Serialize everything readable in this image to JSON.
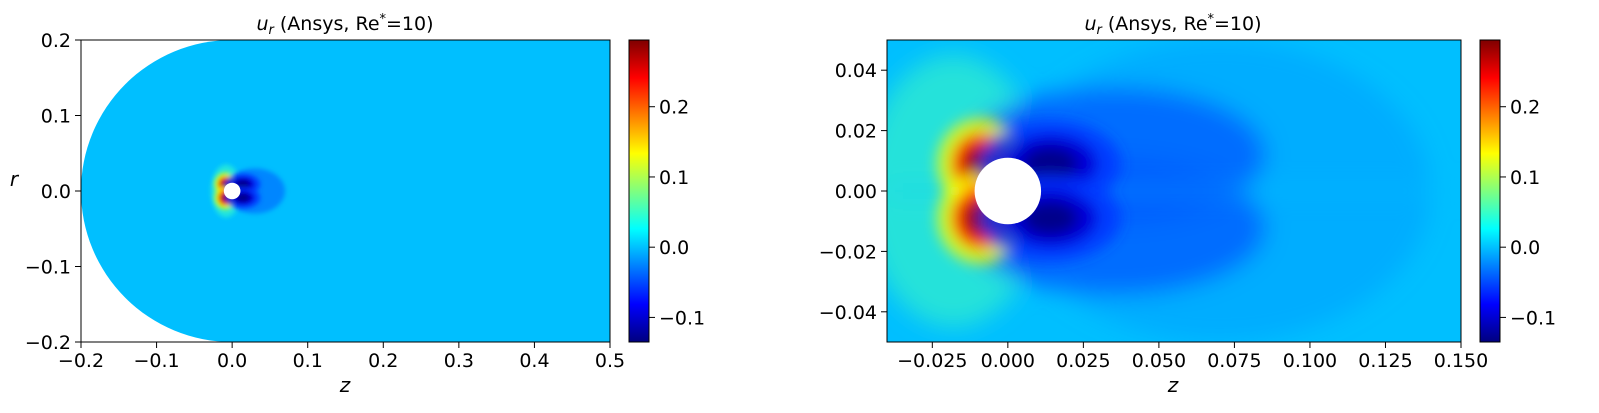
{
  "colormap": {
    "name": "jet",
    "stops": [
      "#00007f",
      "#0000ff",
      "#007fff",
      "#00ffff",
      "#7fff7f",
      "#ffff00",
      "#ff7f00",
      "#ff0000",
      "#7f0000"
    ],
    "background": "#00bfff"
  },
  "chart_data": [
    {
      "type": "heatmap",
      "title_var": "u",
      "title_sub": "r",
      "title_rest": " (Ansys, Re",
      "title_sup": "*",
      "title_end": "=10)",
      "xlabel": "z",
      "ylabel": "r",
      "xlim": [
        -0.2,
        0.5
      ],
      "ylim": [
        -0.2,
        0.2
      ],
      "xticks": [
        -0.2,
        -0.1,
        0.0,
        0.1,
        0.2,
        0.3,
        0.4,
        0.5
      ],
      "yticks": [
        -0.2,
        -0.1,
        0.0,
        0.1,
        0.2
      ],
      "xtick_labels": [
        "−0.2",
        "−0.1",
        "0.0",
        "0.1",
        "0.2",
        "0.3",
        "0.4",
        "0.5"
      ],
      "ytick_labels": [
        "−0.2",
        "−0.1",
        "0.0",
        "0.1",
        "0.2"
      ],
      "domain_inlet_radius": 0.2,
      "sphere_radius": 0.011,
      "colorbar": {
        "vmin": -0.135,
        "vmax": 0.295,
        "ticks": [
          -0.1,
          0.0,
          0.1,
          0.2
        ],
        "tick_labels": [
          "−0.1",
          "0.0",
          "0.1",
          "0.2"
        ]
      },
      "features": [
        {
          "z": -0.009,
          "r": 0.009,
          "value": 0.29
        },
        {
          "z": -0.009,
          "r": -0.009,
          "value": 0.29
        },
        {
          "z": 0.014,
          "r": 0.009,
          "value": -0.13
        },
        {
          "z": 0.014,
          "r": -0.009,
          "value": -0.13
        }
      ]
    },
    {
      "type": "heatmap",
      "title_var": "u",
      "title_sub": "r",
      "title_rest": " (Ansys, Re",
      "title_sup": "*",
      "title_end": "=10)",
      "xlabel": "z",
      "ylabel": "",
      "xlim": [
        -0.04,
        0.15
      ],
      "ylim": [
        -0.05,
        0.05
      ],
      "xticks": [
        -0.025,
        0.0,
        0.025,
        0.05,
        0.075,
        0.1,
        0.125,
        0.15
      ],
      "yticks": [
        -0.04,
        -0.02,
        0.0,
        0.02,
        0.04
      ],
      "xtick_labels": [
        "−0.025",
        "0.000",
        "0.025",
        "0.050",
        "0.075",
        "0.100",
        "0.125",
        "0.150"
      ],
      "ytick_labels": [
        "−0.04",
        "−0.02",
        "0.00",
        "0.02",
        "0.04"
      ],
      "sphere_radius": 0.011,
      "colorbar": {
        "vmin": -0.135,
        "vmax": 0.295,
        "ticks": [
          -0.1,
          0.0,
          0.1,
          0.2
        ],
        "tick_labels": [
          "−0.1",
          "0.0",
          "0.1",
          "0.2"
        ]
      },
      "features": [
        {
          "z": -0.009,
          "r": 0.009,
          "value": 0.29
        },
        {
          "z": -0.009,
          "r": -0.009,
          "value": 0.29
        },
        {
          "z": 0.014,
          "r": 0.009,
          "value": -0.13
        },
        {
          "z": 0.014,
          "r": -0.009,
          "value": -0.13
        }
      ]
    }
  ]
}
